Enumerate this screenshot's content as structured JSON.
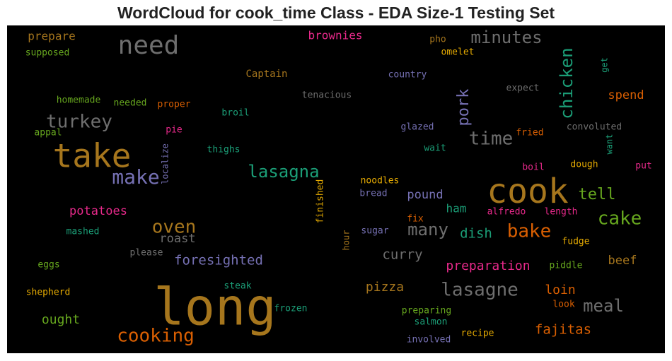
{
  "chart_data": {
    "type": "wordcloud",
    "title": "WordCloud for cook_time Class - EDA Size-1 Testing Set",
    "words": [
      {
        "text": "prepare",
        "color": "#a6761d"
      },
      {
        "text": "need",
        "color": "#6e6e6e"
      },
      {
        "text": "supposed",
        "color": "#66a61e"
      },
      {
        "text": "brownies",
        "color": "#e7298a"
      },
      {
        "text": "minutes",
        "color": "#6e6e6e"
      },
      {
        "text": "pho",
        "color": "#a6761d"
      },
      {
        "text": "omelet",
        "color": "#e6ab02"
      },
      {
        "text": "get",
        "color": "#1b9e77"
      },
      {
        "text": "chicken",
        "color": "#1b9e77"
      },
      {
        "text": "Captain",
        "color": "#a6761d"
      },
      {
        "text": "country",
        "color": "#7570b3"
      },
      {
        "text": "tenacious",
        "color": "#6e6e6e"
      },
      {
        "text": "expect",
        "color": "#6e6e6e"
      },
      {
        "text": "spend",
        "color": "#d95f02"
      },
      {
        "text": "homemade",
        "color": "#66a61e"
      },
      {
        "text": "needed",
        "color": "#66a61e"
      },
      {
        "text": "proper",
        "color": "#d95f02"
      },
      {
        "text": "pork",
        "color": "#7570b3"
      },
      {
        "text": "broil",
        "color": "#1b9e77"
      },
      {
        "text": "turkey",
        "color": "#6e6e6e"
      },
      {
        "text": "pie",
        "color": "#e7298a"
      },
      {
        "text": "glazed",
        "color": "#7570b3"
      },
      {
        "text": "fried",
        "color": "#d95f02"
      },
      {
        "text": "convoluted",
        "color": "#6e6e6e"
      },
      {
        "text": "appal",
        "color": "#66a61e"
      },
      {
        "text": "time",
        "color": "#6e6e6e"
      },
      {
        "text": "want",
        "color": "#1b9e77"
      },
      {
        "text": "take",
        "color": "#a6761d"
      },
      {
        "text": "localize",
        "color": "#7570b3"
      },
      {
        "text": "thighs",
        "color": "#1b9e77"
      },
      {
        "text": "wait",
        "color": "#1b9e77"
      },
      {
        "text": "lasagna",
        "color": "#1b9e77"
      },
      {
        "text": "make",
        "color": "#7570b3"
      },
      {
        "text": "dough",
        "color": "#e6ab02"
      },
      {
        "text": "boil",
        "color": "#e7298a"
      },
      {
        "text": "put",
        "color": "#e7298a"
      },
      {
        "text": "finished",
        "color": "#e6ab02"
      },
      {
        "text": "noodles",
        "color": "#e6ab02"
      },
      {
        "text": "cook",
        "color": "#a6761d"
      },
      {
        "text": "tell",
        "color": "#66a61e"
      },
      {
        "text": "bread",
        "color": "#7570b3"
      },
      {
        "text": "pound",
        "color": "#7570b3"
      },
      {
        "text": "potatoes",
        "color": "#e7298a"
      },
      {
        "text": "ham",
        "color": "#1b9e77"
      },
      {
        "text": "alfredo",
        "color": "#e7298a"
      },
      {
        "text": "length",
        "color": "#e7298a"
      },
      {
        "text": "cake",
        "color": "#66a61e"
      },
      {
        "text": "fix",
        "color": "#d95f02"
      },
      {
        "text": "oven",
        "color": "#a6761d"
      },
      {
        "text": "many",
        "color": "#6e6e6e"
      },
      {
        "text": "bake",
        "color": "#d95f02"
      },
      {
        "text": "mashed",
        "color": "#1b9e77"
      },
      {
        "text": "sugar",
        "color": "#7570b3"
      },
      {
        "text": "dish",
        "color": "#1b9e77"
      },
      {
        "text": "roast",
        "color": "#6e6e6e"
      },
      {
        "text": "hour",
        "color": "#a6761d"
      },
      {
        "text": "fudge",
        "color": "#e6ab02"
      },
      {
        "text": "please",
        "color": "#6e6e6e"
      },
      {
        "text": "curry",
        "color": "#6e6e6e"
      },
      {
        "text": "foresighted",
        "color": "#7570b3"
      },
      {
        "text": "beef",
        "color": "#a6761d"
      },
      {
        "text": "eggs",
        "color": "#66a61e"
      },
      {
        "text": "preparation",
        "color": "#e7298a"
      },
      {
        "text": "piddle",
        "color": "#66a61e"
      },
      {
        "text": "shepherd",
        "color": "#e6ab02"
      },
      {
        "text": "steak",
        "color": "#1b9e77"
      },
      {
        "text": "pizza",
        "color": "#a6761d"
      },
      {
        "text": "lasagne",
        "color": "#6e6e6e"
      },
      {
        "text": "loin",
        "color": "#d95f02"
      },
      {
        "text": "long",
        "color": "#a6761d"
      },
      {
        "text": "look",
        "color": "#d95f02"
      },
      {
        "text": "meal",
        "color": "#6e6e6e"
      },
      {
        "text": "frozen",
        "color": "#1b9e77"
      },
      {
        "text": "preparing",
        "color": "#66a61e"
      },
      {
        "text": "ought",
        "color": "#66a61e"
      },
      {
        "text": "salmon",
        "color": "#1b9e77"
      },
      {
        "text": "fajitas",
        "color": "#d95f02"
      },
      {
        "text": "cooking",
        "color": "#d95f02"
      },
      {
        "text": "recipe",
        "color": "#e6ab02"
      },
      {
        "text": "involved",
        "color": "#7570b3"
      }
    ]
  }
}
